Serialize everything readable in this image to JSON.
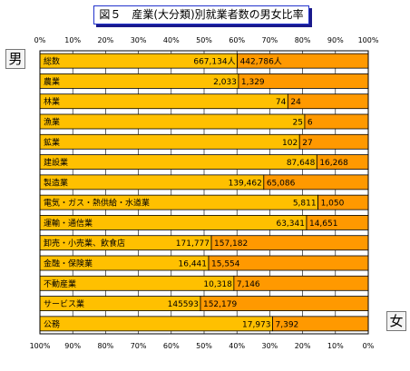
{
  "title": "図５　産業(大分類)別就業者数の男女比率",
  "legend_male": "男",
  "legend_female": "女",
  "chart_data": {
    "type": "bar",
    "orientation": "horizontal-stacked-100",
    "title": "図５　産業(大分類)別就業者数の男女比率",
    "top_axis_ticks": [
      "0%",
      "10%",
      "20%",
      "30%",
      "40%",
      "50%",
      "60%",
      "70%",
      "80%",
      "90%",
      "100%"
    ],
    "bottom_axis_ticks": [
      "100%",
      "90%",
      "80%",
      "70%",
      "60%",
      "50%",
      "40%",
      "30%",
      "20%",
      "10%",
      "0%"
    ],
    "colors": {
      "male": "#ffc000",
      "female": "#ff9900"
    },
    "categories": [
      "総数",
      "農業",
      "林業",
      "漁業",
      "鉱業",
      "建設業",
      "製造業",
      "電気・ガス・熱供給・水道業",
      "運輸・通信業",
      "卸売・小売業、飲食店",
      "金融・保険業",
      "不動産業",
      "サービス業",
      "公務"
    ],
    "series": [
      {
        "name": "男",
        "values": [
          667134,
          2033,
          74,
          25,
          102,
          87648,
          139462,
          5811,
          63341,
          171777,
          16441,
          10318,
          145593,
          17973
        ],
        "labels": [
          "667,134人",
          "2,033",
          "74",
          "25",
          "102",
          "87,648",
          "139,462",
          "5,811",
          "63,341",
          "171,777",
          "16,441",
          "10,318",
          "145593",
          "17,973"
        ]
      },
      {
        "name": "女",
        "values": [
          442786,
          1329,
          24,
          6,
          27,
          16268,
          65086,
          1050,
          14651,
          157182,
          15554,
          7146,
          152179,
          7392
        ],
        "labels": [
          "442,786人",
          "1,329",
          "24",
          "6",
          "27",
          "16,268",
          "65,086",
          "1,050",
          "14,651",
          "157,182",
          "15,554",
          "7,146",
          "152,179",
          "7,392"
        ]
      }
    ],
    "xlim": [
      0,
      100
    ]
  }
}
